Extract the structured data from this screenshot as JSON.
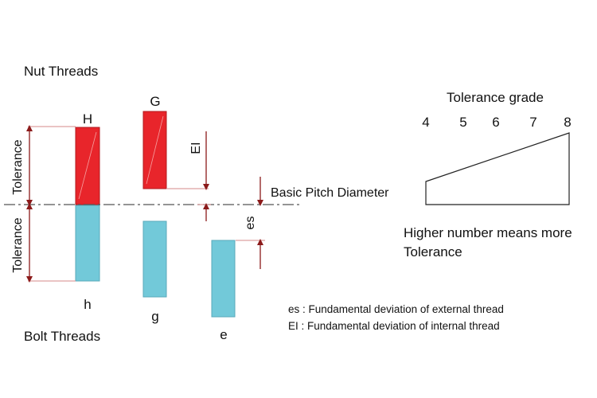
{
  "labels": {
    "nut_threads": "Nut Threads",
    "bolt_threads": "Bolt Threads",
    "tolerance_upper": "Tolerance",
    "tolerance_lower": "Tolerance",
    "ei": "EI",
    "es": "es",
    "basic_pitch_diameter": "Basic Pitch Diameter"
  },
  "zones": {
    "H": "H",
    "G": "G",
    "h": "h",
    "g": "g",
    "e": "e"
  },
  "grade": {
    "title": "Tolerance grade",
    "numbers": [
      "4",
      "5",
      "6",
      "7",
      "8"
    ],
    "caption_line1": "Higher number means more",
    "caption_line2": "Tolerance"
  },
  "legend": {
    "es_line": "es : Fundamental deviation of external thread",
    "ei_line": "EI : Fundamental deviation of internal thread"
  },
  "colors": {
    "nut_zone_fill": "#e8252b",
    "bolt_zone_fill": "#72c9d9",
    "arrow": "#8b1a1a",
    "dimension_line": "#d48a8a"
  }
}
